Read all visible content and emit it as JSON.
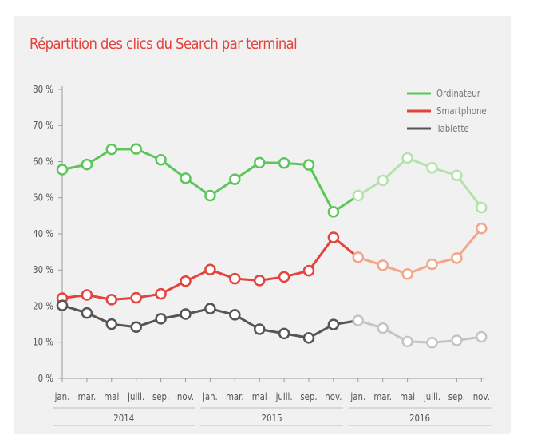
{
  "chart_data": {
    "type": "line",
    "title": "Répartition des clics du Search par terminal",
    "xlabel": "",
    "ylabel": "",
    "ylim": [
      0,
      80
    ],
    "yticks": [
      0,
      10,
      20,
      30,
      40,
      50,
      60,
      70,
      80
    ],
    "ytick_labels": [
      "0 %",
      "10 %",
      "20 %",
      "30 %",
      "40 %",
      "50 %",
      "60 %",
      "70 %",
      "80 %"
    ],
    "categories": [
      "jan.",
      "mar.",
      "mai",
      "juill.",
      "sep.",
      "nov.",
      "jan.",
      "mar.",
      "mai",
      "juill.",
      "sep.",
      "nov.",
      "jan.",
      "mar.",
      "mai",
      "juill.",
      "sep.",
      "nov."
    ],
    "groups": [
      {
        "label": "2014",
        "from": 0,
        "to": 5
      },
      {
        "label": "2015",
        "from": 6,
        "to": 11
      },
      {
        "label": "2016",
        "from": 12,
        "to": 17
      }
    ],
    "faded_from_index": 12,
    "legend_position": "top-right",
    "grid": false,
    "series": [
      {
        "name": "Ordinateur",
        "color": "#5cc65c",
        "faded_color": "#b3e3a8",
        "values": [
          57.8,
          59.2,
          63.4,
          63.5,
          60.5,
          55.4,
          50.6,
          55.1,
          59.7,
          59.6,
          59.1,
          46.1,
          50.6,
          54.8,
          61.0,
          58.3,
          56.2,
          47.3
        ]
      },
      {
        "name": "Smartphone",
        "color": "#e4423c",
        "faded_color": "#f2a68a",
        "values": [
          22.2,
          23.1,
          21.8,
          22.3,
          23.4,
          26.9,
          30.1,
          27.6,
          27.1,
          28.1,
          29.8,
          39.0,
          33.5,
          31.3,
          28.9,
          31.6,
          33.3,
          41.5
        ]
      },
      {
        "name": "Tablette",
        "color": "#555555",
        "faded_color": "#c4c4c4",
        "values": [
          20.2,
          18.1,
          15.0,
          14.2,
          16.5,
          17.8,
          19.3,
          17.6,
          13.6,
          12.4,
          11.2,
          14.9,
          16.0,
          13.9,
          10.2,
          9.9,
          10.5,
          11.5
        ]
      }
    ]
  }
}
